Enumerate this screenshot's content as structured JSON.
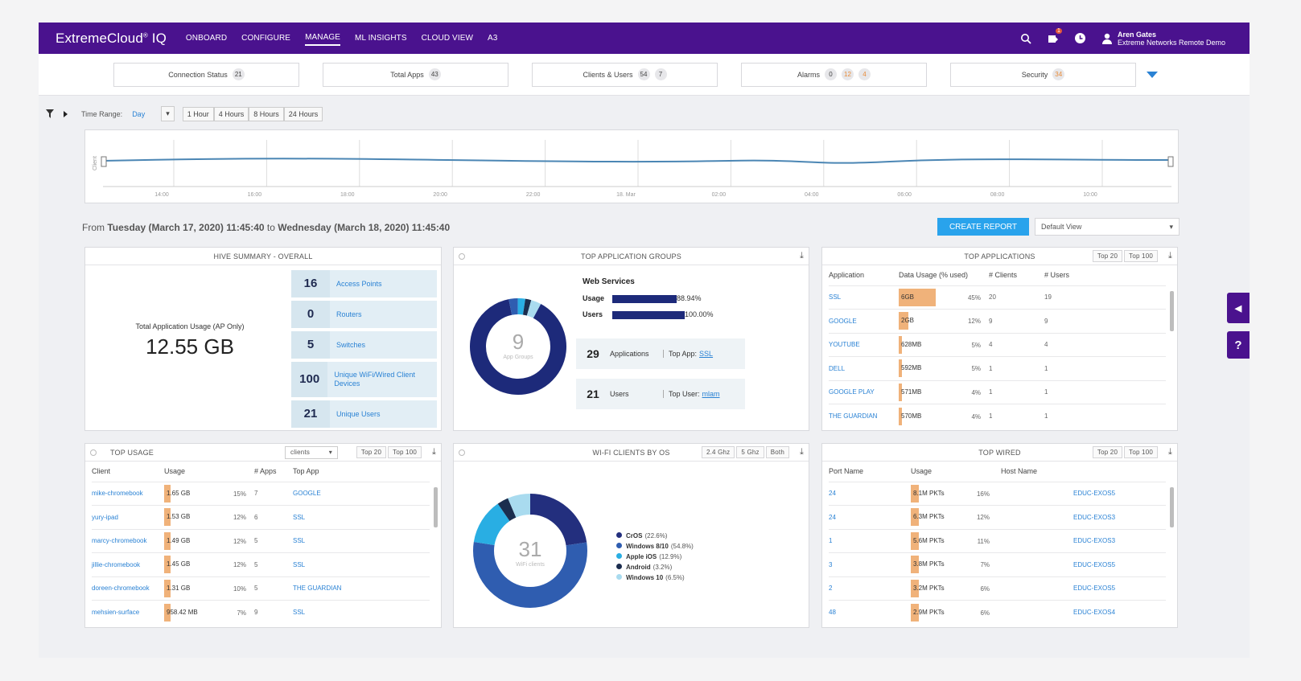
{
  "nav": {
    "logo": "ExtremeCloud",
    "logo_suffix": "IQ",
    "items": [
      "ONBOARD",
      "CONFIGURE",
      "MANAGE",
      "ML INSIGHTS",
      "CLOUD VIEW",
      "A3"
    ],
    "active": "MANAGE",
    "user_name": "Aren Gates",
    "user_org": "Extreme Networks Remote Demo",
    "notification_badge": "1"
  },
  "summary": [
    {
      "label": "Connection Status",
      "badges": [
        "21"
      ]
    },
    {
      "label": "Total Apps",
      "badges": [
        "43"
      ]
    },
    {
      "label": "Clients & Users",
      "badges": [
        "54",
        "7"
      ]
    },
    {
      "label": "Alarms",
      "badges": [
        "0",
        "12",
        "4"
      ]
    },
    {
      "label": "Security",
      "badges": [
        "34"
      ]
    }
  ],
  "filter": {
    "time_range_label": "Time Range:",
    "time_range_value": "Day",
    "buttons": [
      "1 Hour",
      "4 Hours",
      "8 Hours",
      "24 Hours"
    ]
  },
  "timeline": {
    "ylabel": "Client",
    "ticks": [
      "14:00",
      "16:00",
      "18:00",
      "20:00",
      "22:00",
      "18. Mar",
      "02:00",
      "04:00",
      "06:00",
      "08:00",
      "10:00"
    ]
  },
  "range": {
    "from_label": "From",
    "from": "Tuesday (March 17, 2020) 11:45:40",
    "to_label": "to",
    "to": "Wednesday (March 18, 2020) 11:45:40",
    "create_report": "CREATE REPORT",
    "view": "Default View"
  },
  "hive": {
    "title": "HIVE SUMMARY - OVERALL",
    "usage_label": "Total Application Usage (AP Only)",
    "usage_value": "12.55 GB",
    "rows": [
      {
        "num": "16",
        "label": "Access Points"
      },
      {
        "num": "0",
        "label": "Routers"
      },
      {
        "num": "5",
        "label": "Switches"
      },
      {
        "num": "100",
        "label": "Unique WiFi/Wired Client Devices"
      },
      {
        "num": "21",
        "label": "Unique Users"
      }
    ]
  },
  "app_groups": {
    "title": "TOP APPLICATION GROUPS",
    "donut_value": "9",
    "donut_label": "App Groups",
    "group": "Web Services",
    "usage_label": "Usage",
    "usage_pct": "88.94%",
    "usage_frac": 0.8894,
    "users_label": "Users",
    "users_pct": "100.00%",
    "users_frac": 1.0,
    "apps_num": "29",
    "apps_label": "Applications",
    "top_app_label": "Top App:",
    "top_app": "SSL",
    "users_num": "21",
    "users_text": "Users",
    "top_user_label": "Top User:",
    "top_user": "mlam"
  },
  "top_apps": {
    "title": "TOP APPLICATIONS",
    "btns": [
      "Top 20",
      "Top 100"
    ],
    "headers": [
      "Application",
      "Data Usage (% used)",
      "# Clients",
      "# Users"
    ],
    "rows": [
      {
        "app": "SSL",
        "usage": "6GB",
        "pct": "45%",
        "clients": "20",
        "users": "19",
        "frac": 1.0
      },
      {
        "app": "GOOGLE",
        "usage": "2GB",
        "pct": "12%",
        "clients": "9",
        "users": "9",
        "frac": 0.27
      },
      {
        "app": "YOUTUBE",
        "usage": "628MB",
        "pct": "5%",
        "clients": "4",
        "users": "4",
        "frac": 0.04
      },
      {
        "app": "DELL",
        "usage": "592MB",
        "pct": "5%",
        "clients": "1",
        "users": "1",
        "frac": 0.04
      },
      {
        "app": "GOOGLE PLAY",
        "usage": "571MB",
        "pct": "4%",
        "clients": "1",
        "users": "1",
        "frac": 0.04
      },
      {
        "app": "THE GUARDIAN",
        "usage": "570MB",
        "pct": "4%",
        "clients": "1",
        "users": "1",
        "frac": 0.04
      }
    ]
  },
  "top_usage": {
    "title": "TOP USAGE",
    "select": "clients",
    "btns": [
      "Top 20",
      "Top 100"
    ],
    "headers": [
      "Client",
      "Usage",
      "# Apps",
      "Top App"
    ],
    "rows": [
      {
        "client": "mike-chromebook",
        "usage": "1.65 GB",
        "pct": "15%",
        "apps": "7",
        "top": "GOOGLE"
      },
      {
        "client": "yury-ipad",
        "usage": "1.53 GB",
        "pct": "12%",
        "apps": "6",
        "top": "SSL"
      },
      {
        "client": "marcy-chromebook",
        "usage": "1.49 GB",
        "pct": "12%",
        "apps": "5",
        "top": "SSL"
      },
      {
        "client": "jillie-chromebook",
        "usage": "1.45 GB",
        "pct": "12%",
        "apps": "5",
        "top": "SSL"
      },
      {
        "client": "doreen-chromebook",
        "usage": "1.31 GB",
        "pct": "10%",
        "apps": "5",
        "top": "THE GUARDIAN"
      },
      {
        "client": "mehsien-surface",
        "usage": "958.42 MB",
        "pct": "7%",
        "apps": "9",
        "top": "SSL"
      }
    ]
  },
  "wifi_os": {
    "title": "WI-FI CLIENTS BY OS",
    "btns": [
      "2.4 Ghz",
      "5 Ghz",
      "Both"
    ],
    "donut_value": "31",
    "donut_label": "WiFi clients",
    "legend": [
      {
        "name": "CrOS",
        "pct": "(22.6%)",
        "value": 22.6,
        "color": "#232f7e"
      },
      {
        "name": "Windows 8/10",
        "pct": "(54.8%)",
        "value": 54.8,
        "color": "#2f5db0"
      },
      {
        "name": "Apple iOS",
        "pct": "(12.9%)",
        "value": 12.9,
        "color": "#29aee3"
      },
      {
        "name": "Android",
        "pct": "(3.2%)",
        "value": 3.2,
        "color": "#1b2d4e"
      },
      {
        "name": "Windows 10",
        "pct": "(6.5%)",
        "value": 6.5,
        "color": "#a9dbef"
      }
    ]
  },
  "top_wired": {
    "title": "TOP WIRED",
    "btns": [
      "Top 20",
      "Top 100"
    ],
    "headers": [
      "Port Name",
      "Usage",
      "Host Name"
    ],
    "rows": [
      {
        "port": "24",
        "usage": "8.1M PKTs",
        "pct": "16%",
        "host": "EDUC-EXOS5"
      },
      {
        "port": "24",
        "usage": "6.3M PKTs",
        "pct": "12%",
        "host": "EDUC-EXOS3"
      },
      {
        "port": "1",
        "usage": "5.6M PKTs",
        "pct": "11%",
        "host": "EDUC-EXOS3"
      },
      {
        "port": "3",
        "usage": "3.8M PKTs",
        "pct": "7%",
        "host": "EDUC-EXOS5"
      },
      {
        "port": "2",
        "usage": "3.2M PKTs",
        "pct": "6%",
        "host": "EDUC-EXOS5"
      },
      {
        "port": "48",
        "usage": "2.9M PKTs",
        "pct": "6%",
        "host": "EDUC-EXOS4"
      }
    ]
  },
  "side": {
    "collapse": "◀",
    "help": "?"
  }
}
